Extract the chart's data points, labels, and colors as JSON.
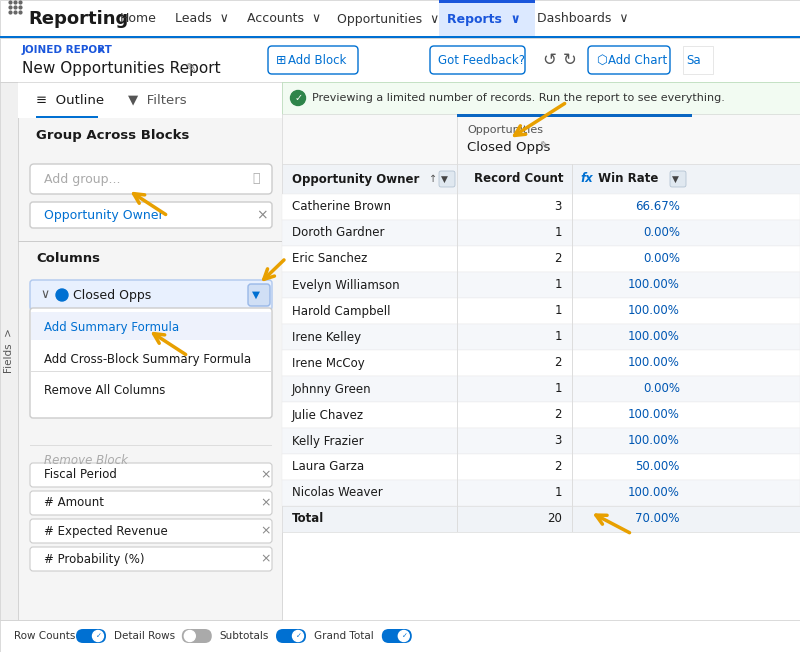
{
  "nav_items": [
    "Home",
    "Leads",
    "Accounts",
    "Opportunities",
    "Reports",
    "Dashboards"
  ],
  "nav_active": "Reports",
  "app_name": "Reporting",
  "report_type": "JOINED REPORT",
  "report_name": "New Opportunities Report",
  "group_section_title": "Group Across Blocks",
  "group_search_placeholder": "Add group...",
  "group_item": "Opportunity Owner",
  "columns_section_title": "Columns",
  "column_item": "Closed Opps",
  "dropdown_items": [
    "Add Summary Formula",
    "Add Cross-Block Summary Formula",
    "Remove All Columns"
  ],
  "remove_block_label": "Remove Block",
  "extra_columns": [
    "Fiscal Period",
    "# Amount",
    "# Expected Revenue",
    "# Probability (%)"
  ],
  "preview_msg": "Previewing a limited number of records. Run the report to see everything.",
  "table_group_label": "Opportunities",
  "table_block_label": "Closed Opps",
  "table_headers": [
    "Opportunity Owner",
    "Record Count",
    "Win Rate"
  ],
  "table_rows": [
    [
      "Catherine Brown",
      "3",
      "66.67%"
    ],
    [
      "Doroth Gardner",
      "1",
      "0.00%"
    ],
    [
      "Eric Sanchez",
      "2",
      "0.00%"
    ],
    [
      "Evelyn Williamson",
      "1",
      "100.00%"
    ],
    [
      "Harold Campbell",
      "1",
      "100.00%"
    ],
    [
      "Irene Kelley",
      "1",
      "100.00%"
    ],
    [
      "Irene McCoy",
      "2",
      "100.00%"
    ],
    [
      "Johnny Green",
      "1",
      "0.00%"
    ],
    [
      "Julie Chavez",
      "2",
      "100.00%"
    ],
    [
      "Kelly Frazier",
      "3",
      "100.00%"
    ],
    [
      "Laura Garza",
      "2",
      "50.00%"
    ],
    [
      "Nicolas Weaver",
      "1",
      "100.00%"
    ]
  ],
  "total_row": [
    "Total",
    "20",
    "70.00%"
  ],
  "footer_items": [
    "Row Counts",
    "Detail Rows",
    "Subtotals",
    "Grand Total"
  ],
  "footer_toggles": [
    true,
    false,
    true,
    true
  ],
  "blue": "#0070d2",
  "blue_dark": "#0a66c2",
  "blue_nav": "#1a56db",
  "blue_label": "#0070d2",
  "arrow_color": "#e8a000",
  "border_color": "#dddddd",
  "white": "#ffffff",
  "green": "#2e844a",
  "sidebar_bg": "#f3f3f3",
  "nav_active_bg": "#dce9ff",
  "table_blue": "#0057b3",
  "fields_label_bg": "#e8e8e8",
  "tab_underline": "#0070d2"
}
